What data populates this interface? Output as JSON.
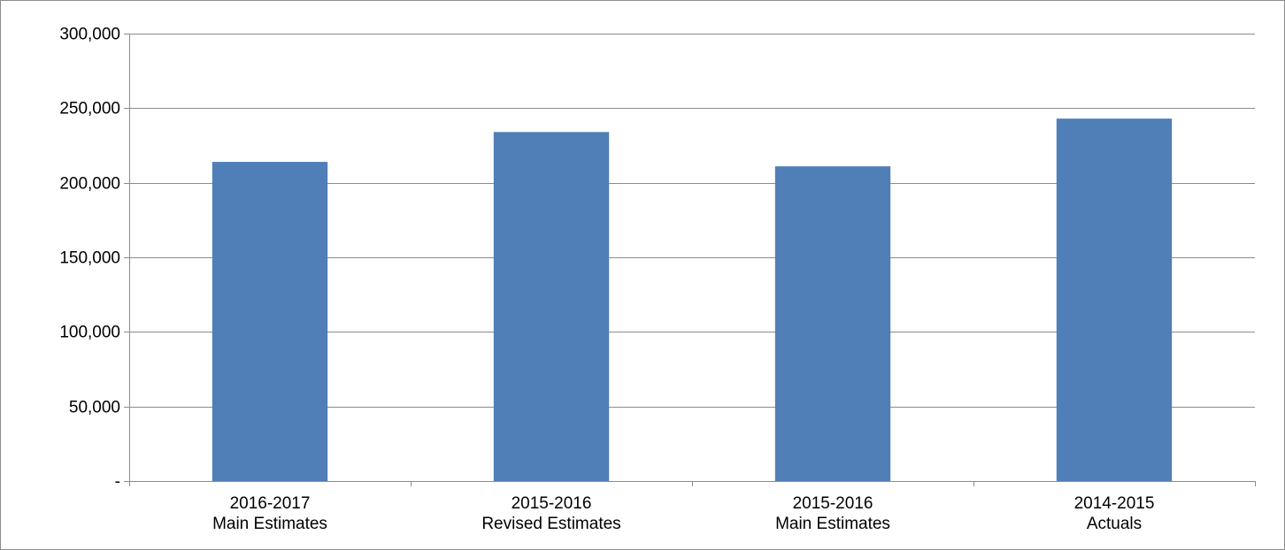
{
  "chart_data": {
    "type": "bar",
    "categories": [
      [
        "2016-2017",
        "Main Estimates"
      ],
      [
        "2015-2016",
        "Revised Estimates"
      ],
      [
        "2015-2016",
        "Main Estimates"
      ],
      [
        "2014-2015",
        "Actuals"
      ]
    ],
    "values": [
      214000,
      234000,
      211000,
      243000
    ],
    "ylim": [
      0,
      300000
    ],
    "y_ticks": [
      0,
      50000,
      100000,
      150000,
      200000,
      250000,
      300000
    ],
    "y_tick_labels": [
      "-",
      "50,000",
      "100,000",
      "150,000",
      "200,000",
      "250,000",
      "300,000"
    ],
    "title": "",
    "xlabel": "",
    "ylabel": "",
    "grid": true,
    "legend": "none",
    "colors": {
      "bar": "#4f7fb6",
      "grid": "#8c8c8c",
      "axis": "#8c8c8c",
      "border": "#8c8c8c"
    }
  }
}
